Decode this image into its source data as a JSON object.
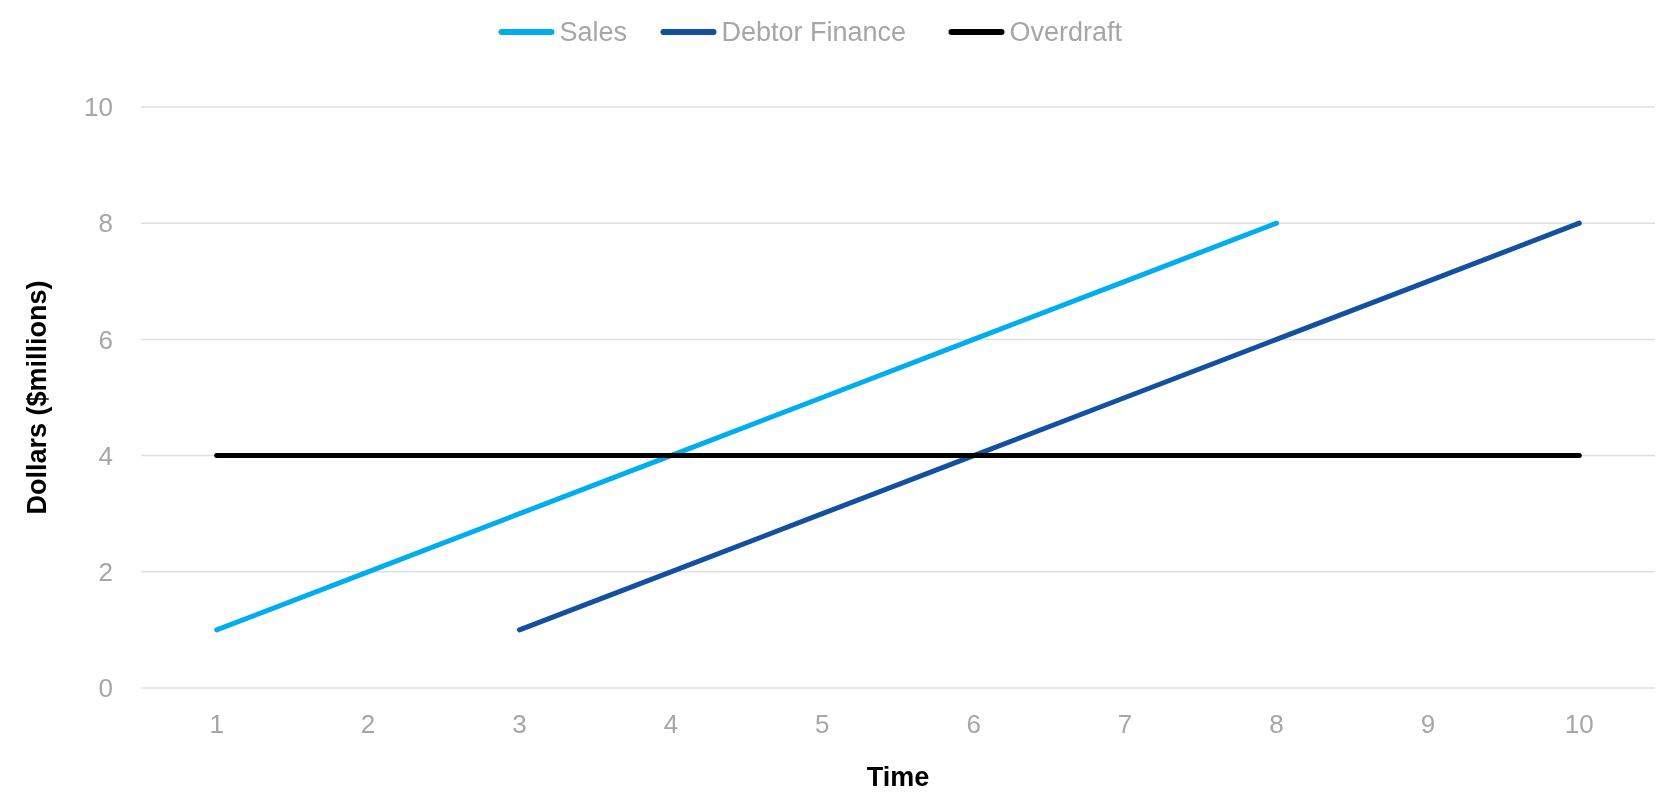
{
  "chart_data": {
    "type": "line",
    "xlabel": "Time",
    "ylabel": "Dollars ($millions)",
    "categories": [
      "1",
      "2",
      "3",
      "4",
      "5",
      "6",
      "7",
      "8",
      "9",
      "10"
    ],
    "ylim": [
      0,
      10
    ],
    "yticks": [
      0,
      2,
      4,
      6,
      8,
      10
    ],
    "grid": "y",
    "legend": "top",
    "marker": "none",
    "line_style": "solid",
    "series": [
      {
        "name": "Sales",
        "color": "#00aeef",
        "values": [
          1,
          2,
          3,
          4,
          5,
          6,
          7,
          8,
          null,
          null
        ]
      },
      {
        "name": "Debtor Finance",
        "color": "#1450a0",
        "values": [
          null,
          null,
          1,
          2,
          3,
          4,
          5,
          6,
          7,
          8
        ]
      },
      {
        "name": "Overdraft",
        "color": "#000000",
        "values": [
          4,
          4,
          4,
          4,
          4,
          4,
          4,
          4,
          4,
          4
        ]
      }
    ]
  }
}
